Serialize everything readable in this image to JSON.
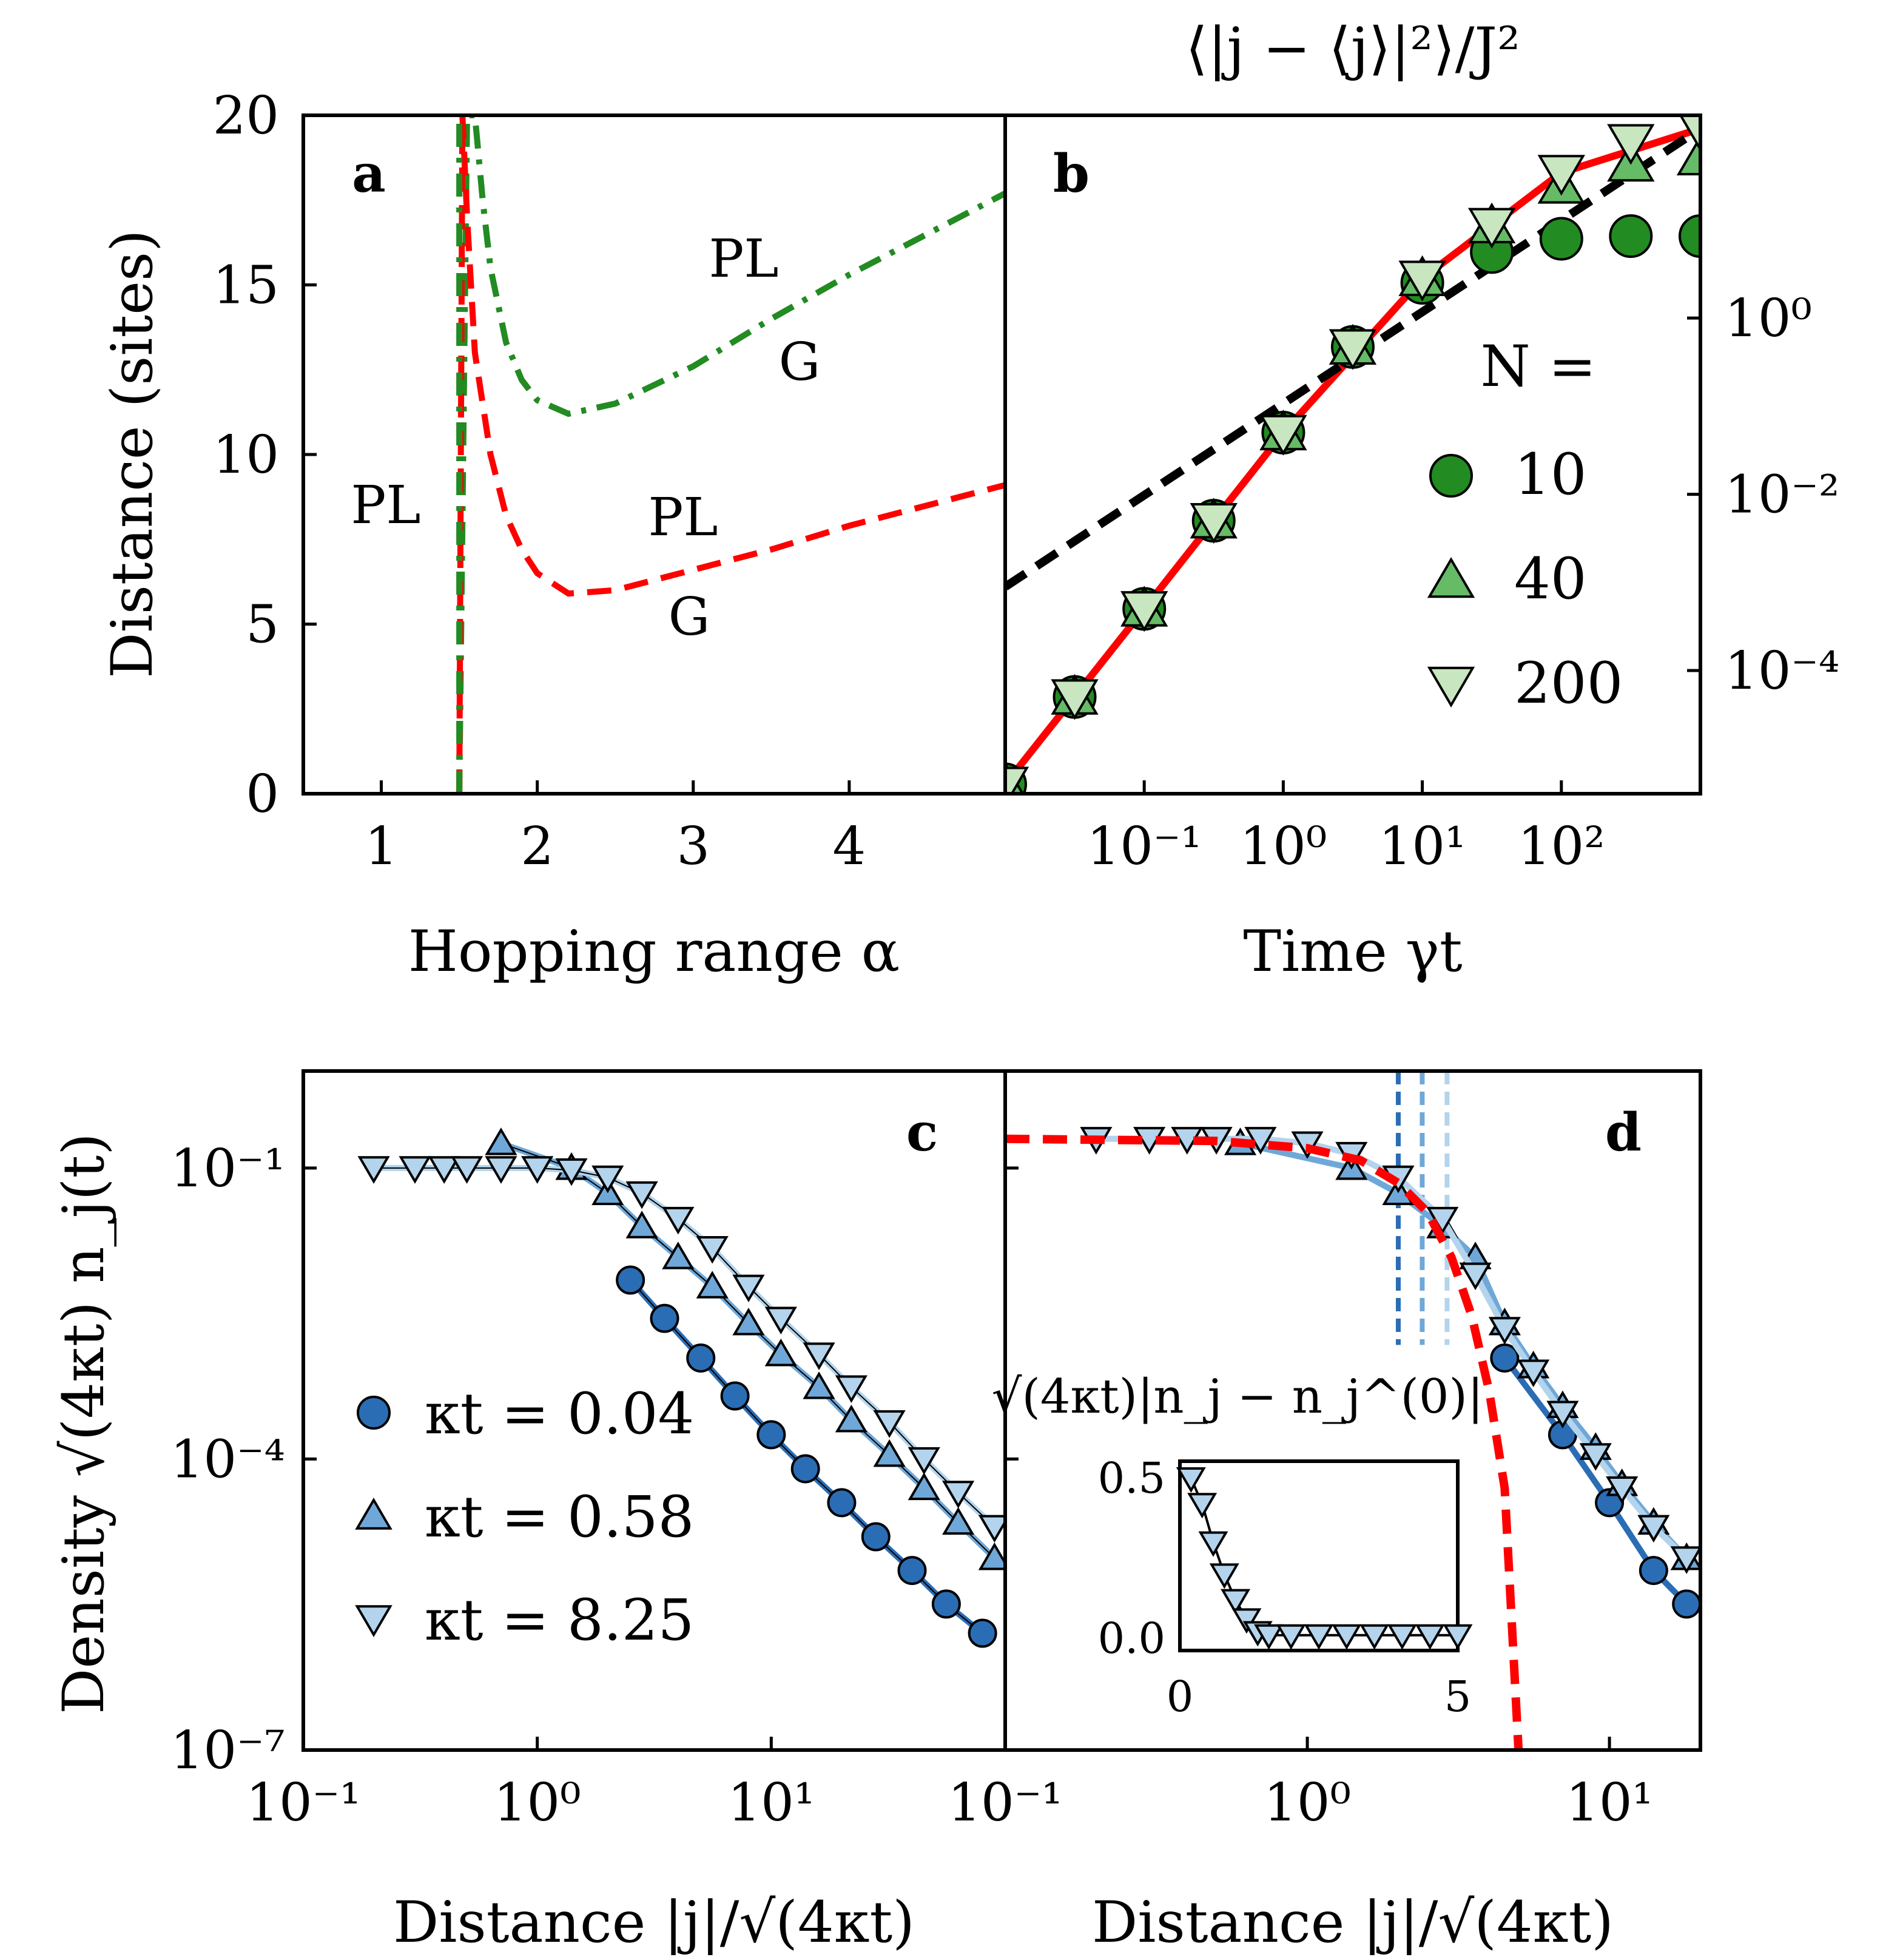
{
  "chart_data": [
    {
      "id": "a",
      "type": "line",
      "panel_label": "a",
      "xlabel": "Hopping range α",
      "ylabel": "Distance (sites)",
      "xlim": [
        0.5,
        5.0
      ],
      "ylim": [
        0,
        20
      ],
      "xticks": [
        "1",
        "2",
        "3",
        "4"
      ],
      "yticks": [
        "0",
        "5",
        "10",
        "15",
        "20"
      ],
      "annotations": {
        "pl_black": "PL",
        "pl_green": "PL",
        "g_green": "G",
        "pl_red": "PL",
        "g_red": "G"
      },
      "series": [
        {
          "color": "#228b22",
          "style": "dash-dot",
          "x": [
            1.5,
            1.55,
            1.6,
            1.65,
            1.7,
            1.8,
            1.9,
            2.0,
            2.2,
            2.5,
            3.0,
            3.5,
            4.0,
            4.5,
            5.0
          ],
          "y": [
            0,
            20,
            20,
            17.5,
            15.5,
            13.3,
            12.2,
            11.6,
            11.2,
            11.5,
            12.6,
            14.0,
            15.3,
            16.5,
            17.7
          ]
        },
        {
          "color": "#ff0000",
          "style": "dashed",
          "x": [
            1.5,
            1.52,
            1.55,
            1.6,
            1.7,
            1.8,
            1.9,
            2.0,
            2.2,
            2.5,
            3.0,
            3.5,
            4.0,
            4.5,
            5.0
          ],
          "y": [
            0,
            20,
            17.0,
            13.0,
            10.0,
            8.2,
            7.2,
            6.5,
            5.9,
            6.0,
            6.6,
            7.2,
            7.9,
            8.5,
            9.1
          ]
        },
        {
          "color": "#228b22",
          "style": "dash-dot",
          "x": [
            1.5,
            1.5
          ],
          "y": [
            0,
            20
          ]
        }
      ]
    },
    {
      "id": "b",
      "type": "scatter",
      "panel_label": "b",
      "title": "⟨|j − ⟨j⟩|²⟩/J²",
      "xlabel": "Time γt",
      "xscale": "log",
      "yscale": "log",
      "xlim": [
        0.01,
        1000
      ],
      "ylim": [
        4e-06,
        200
      ],
      "xticks": [
        "10⁻¹",
        "10⁰",
        "10¹",
        "10²"
      ],
      "yticks": [
        "10⁰",
        "10⁻²",
        "10⁻⁴"
      ],
      "legend_title": "N =",
      "legend_position": "right",
      "x": [
        0.01,
        0.0178,
        0.0316,
        0.0562,
        0.1,
        0.178,
        0.316,
        0.562,
        1,
        1.78,
        3.16,
        5.62,
        10,
        17.8,
        31.6,
        56.2,
        100,
        178,
        316,
        562,
        1000
      ],
      "series": [
        {
          "name": "10",
          "marker": "circle",
          "color": "#228b22",
          "y": [
            5.1e-06,
            1.6e-05,
            5.01e-05,
            0.00016,
            0.000501,
            0.0016,
            0.00501,
            0.0158,
            0.0501,
            0.158,
            0.47,
            1.26,
            2.51,
            3.98,
            5.62,
            7.08,
            7.94,
            8.32,
            8.51,
            8.51,
            8.51
          ]
        },
        {
          "name": "40",
          "marker": "triangle-up",
          "color": "#66bb66",
          "y": [
            5.1e-06,
            1.6e-05,
            5.01e-05,
            0.00016,
            0.000501,
            0.0016,
            0.00501,
            0.0158,
            0.0501,
            0.158,
            0.47,
            1.26,
            2.82,
            5.62,
            11.2,
            20.0,
            31.6,
            44.7,
            56.2,
            63.1,
            66.1
          ]
        },
        {
          "name": "200",
          "marker": "triangle-down",
          "color": "#c8e6c0",
          "y": [
            5.1e-06,
            1.6e-05,
            5.01e-05,
            0.00016,
            0.000501,
            0.0016,
            0.00501,
            0.0158,
            0.0501,
            0.158,
            0.47,
            1.26,
            2.82,
            5.62,
            11.2,
            22.4,
            44.7,
            70.8,
            100,
            126,
            141
          ]
        },
        {
          "style": "solid",
          "color": "#ff0000",
          "x": [
            0.01,
            0.1,
            1,
            10,
            100,
            1000
          ],
          "y": [
            5.1e-06,
            0.000501,
            0.0501,
            2.82,
            44.7,
            141
          ]
        },
        {
          "style": "dashed",
          "color": "#000000",
          "x": [
            0.01,
            1000
          ],
          "y": [
            0.000891,
            141
          ]
        }
      ]
    },
    {
      "id": "c",
      "type": "scatter",
      "panel_label": "c",
      "ylabel": "Density √(4κt) n_j(t)",
      "xlabel": "Distance |j|/√(4κt)",
      "xscale": "log",
      "yscale": "log",
      "xlim": [
        0.1,
        100
      ],
      "ylim": [
        1e-07,
        1
      ],
      "xticks": [
        "10⁻¹",
        "10⁰",
        "10¹",
        "10⁻¹"
      ],
      "yticks": [
        "10⁻¹",
        "10⁻⁴",
        "10⁻⁷"
      ],
      "legend_position": "lower-left",
      "series": [
        {
          "name": "κt = 0.04",
          "marker": "circle",
          "color": "#2a6db5",
          "x": [
            2.5,
            3.5,
            5,
            7,
            10,
            14,
            20,
            28,
            40,
            56,
            80
          ],
          "y": [
            0.007,
            0.00282,
            0.0011,
            0.000447,
            0.000178,
            7.94e-05,
            3.55e-05,
            1.58e-05,
            7.1e-06,
            3.2e-06,
            1.6e-06
          ]
        },
        {
          "name": "κt = 0.58",
          "marker": "triangle-up",
          "color": "#6fa8d8",
          "x": [
            0.7,
            1.4,
            2.0,
            2.8,
            4,
            5.6,
            8,
            11,
            16,
            22,
            32,
            45,
            63,
            90
          ],
          "y": [
            0.18,
            0.1,
            0.055,
            0.025,
            0.012,
            0.006,
            0.0025,
            0.0012,
            0.00055,
            0.00025,
            0.00011,
            5e-05,
            2.2e-05,
            9.5e-06
          ]
        },
        {
          "name": "κt = 8.25",
          "marker": "triangle-down",
          "color": "#b3d4ec",
          "x": [
            0.2,
            0.3,
            0.4,
            0.5,
            0.7,
            1,
            1.4,
            2,
            2.8,
            4,
            5.6,
            8,
            11,
            16,
            22,
            32,
            45,
            63,
            90
          ],
          "y": [
            0.1,
            0.1,
            0.1,
            0.1,
            0.1,
            0.1,
            0.095,
            0.08,
            0.055,
            0.03,
            0.015,
            0.006,
            0.0028,
            0.0012,
            0.00055,
            0.00024,
            0.0001,
            4.5e-05,
            2e-05
          ]
        }
      ]
    },
    {
      "id": "d",
      "type": "scatter",
      "panel_label": "d",
      "xlabel": "Distance |j|/√(4κt)",
      "xscale": "log",
      "yscale": "log",
      "xlim": [
        0.1,
        20
      ],
      "ylim": [
        1e-07,
        1
      ],
      "xticks": [
        "10⁻¹",
        "10⁰",
        "10¹"
      ],
      "inset": {
        "ylabel": "√(4κt)|n_j − n_j^(0)|",
        "xlim": [
          0,
          5
        ],
        "ylim": [
          0,
          0.5
        ],
        "xticks": [
          "0",
          "5"
        ],
        "yticks": [
          "0.0",
          "0.5"
        ],
        "x": [
          0.2,
          0.4,
          0.6,
          0.8,
          1.0,
          1.2,
          1.4,
          1.6,
          2.0,
          2.5,
          3.0,
          3.5,
          4.0,
          4.5,
          5.0
        ],
        "y": [
          0.5,
          0.42,
          0.3,
          0.2,
          0.12,
          0.06,
          0.02,
          0.01,
          0.01,
          0.01,
          0.01,
          0.01,
          0.01,
          0.01,
          0.01
        ]
      },
      "series": [
        {
          "name": "κt = 0.04",
          "marker": "circle",
          "color": "#2a6db5",
          "x": [
            4.5,
            7,
            10,
            14,
            18
          ],
          "y": [
            0.0011,
            0.000178,
            3.55e-05,
            7.1e-06,
            3.2e-06
          ]
        },
        {
          "name": "κt = 0.58",
          "marker": "triangle-up",
          "color": "#6fa8d8",
          "x": [
            0.6,
            1.4,
            2.0,
            2.8,
            3.6,
            4.5,
            5.6,
            7,
            9,
            11,
            14,
            18
          ],
          "y": [
            0.18,
            0.1,
            0.055,
            0.025,
            0.012,
            0.0025,
            0.0009,
            0.00035,
            0.00013,
            5.5e-05,
            2.2e-05,
            9.5e-06
          ]
        },
        {
          "name": "κt = 8.25",
          "marker": "triangle-down",
          "color": "#b3d4ec",
          "x": [
            0.2,
            0.3,
            0.4,
            0.5,
            0.7,
            1,
            1.4,
            2,
            2.8,
            3.6,
            4.5,
            5.6,
            7,
            9,
            11,
            14,
            18
          ],
          "y": [
            0.2,
            0.2,
            0.2,
            0.2,
            0.2,
            0.18,
            0.14,
            0.08,
            0.03,
            0.008,
            0.0022,
            0.0008,
            0.0003,
            0.00011,
            5e-05,
            2e-05,
            9.5e-06
          ]
        },
        {
          "style": "dashed",
          "color": "#ff0000",
          "x": [
            0.1,
            0.5,
            1,
            1.5,
            2,
            2.5,
            3,
            3.5,
            4,
            4.5,
            5
          ],
          "y": [
            0.2,
            0.19,
            0.16,
            0.12,
            0.07,
            0.035,
            0.012,
            0.003,
            0.0005,
            5e-05,
            1e-07
          ]
        }
      ],
      "vlines": [
        {
          "x": 2.0,
          "color": "#2a6db5"
        },
        {
          "x": 2.4,
          "color": "#6fa8d8"
        },
        {
          "x": 2.9,
          "color": "#b3d4ec"
        }
      ]
    }
  ]
}
